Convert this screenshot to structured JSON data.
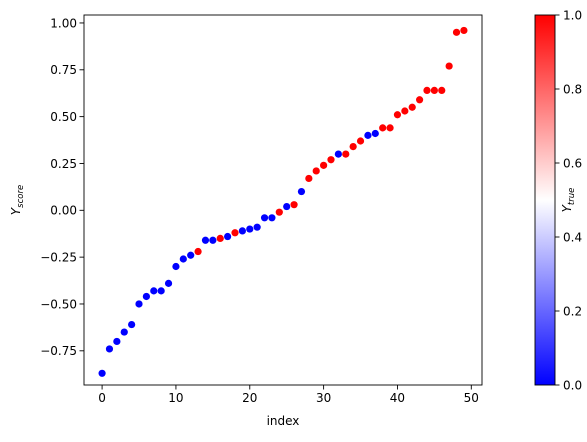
{
  "chart_data": {
    "type": "scatter",
    "title": "",
    "xlabel": "index",
    "ylabel": {
      "base": "Y",
      "sub": "score"
    },
    "xlim": [
      -2.45,
      51.45
    ],
    "ylim": [
      -0.9325,
      1.0425
    ],
    "xticks": [
      0,
      10,
      20,
      30,
      40,
      50
    ],
    "xtick_labels": [
      "0",
      "10",
      "20",
      "30",
      "40",
      "50"
    ],
    "yticks": [
      -0.75,
      -0.5,
      -0.25,
      0.0,
      0.25,
      0.5,
      0.75,
      1.0
    ],
    "ytick_labels": [
      "−0.75",
      "−0.50",
      "−0.25",
      "0.00",
      "0.25",
      "0.50",
      "0.75",
      "1.00"
    ],
    "grid": false,
    "points": [
      {
        "x": 0,
        "y": -0.87,
        "c": 0
      },
      {
        "x": 1,
        "y": -0.74,
        "c": 0
      },
      {
        "x": 2,
        "y": -0.7,
        "c": 0
      },
      {
        "x": 3,
        "y": -0.65,
        "c": 0
      },
      {
        "x": 4,
        "y": -0.61,
        "c": 0
      },
      {
        "x": 5,
        "y": -0.5,
        "c": 0
      },
      {
        "x": 6,
        "y": -0.46,
        "c": 0
      },
      {
        "x": 7,
        "y": -0.43,
        "c": 0
      },
      {
        "x": 8,
        "y": -0.43,
        "c": 0
      },
      {
        "x": 9,
        "y": -0.39,
        "c": 0
      },
      {
        "x": 10,
        "y": -0.3,
        "c": 0
      },
      {
        "x": 11,
        "y": -0.26,
        "c": 0
      },
      {
        "x": 12,
        "y": -0.24,
        "c": 0
      },
      {
        "x": 13,
        "y": -0.22,
        "c": 1
      },
      {
        "x": 14,
        "y": -0.16,
        "c": 0
      },
      {
        "x": 15,
        "y": -0.16,
        "c": 0
      },
      {
        "x": 16,
        "y": -0.15,
        "c": 1
      },
      {
        "x": 17,
        "y": -0.14,
        "c": 0
      },
      {
        "x": 18,
        "y": -0.12,
        "c": 1
      },
      {
        "x": 19,
        "y": -0.11,
        "c": 0
      },
      {
        "x": 20,
        "y": -0.1,
        "c": 0
      },
      {
        "x": 21,
        "y": -0.09,
        "c": 0
      },
      {
        "x": 22,
        "y": -0.04,
        "c": 0
      },
      {
        "x": 23,
        "y": -0.04,
        "c": 0
      },
      {
        "x": 24,
        "y": -0.01,
        "c": 1
      },
      {
        "x": 25,
        "y": 0.02,
        "c": 0
      },
      {
        "x": 26,
        "y": 0.03,
        "c": 1
      },
      {
        "x": 27,
        "y": 0.1,
        "c": 0
      },
      {
        "x": 28,
        "y": 0.17,
        "c": 1
      },
      {
        "x": 29,
        "y": 0.21,
        "c": 1
      },
      {
        "x": 30,
        "y": 0.24,
        "c": 1
      },
      {
        "x": 31,
        "y": 0.27,
        "c": 1
      },
      {
        "x": 32,
        "y": 0.3,
        "c": 0
      },
      {
        "x": 33,
        "y": 0.3,
        "c": 1
      },
      {
        "x": 34,
        "y": 0.34,
        "c": 1
      },
      {
        "x": 35,
        "y": 0.37,
        "c": 1
      },
      {
        "x": 36,
        "y": 0.4,
        "c": 0
      },
      {
        "x": 37,
        "y": 0.41,
        "c": 0
      },
      {
        "x": 38,
        "y": 0.44,
        "c": 1
      },
      {
        "x": 39,
        "y": 0.44,
        "c": 1
      },
      {
        "x": 40,
        "y": 0.51,
        "c": 1
      },
      {
        "x": 41,
        "y": 0.53,
        "c": 1
      },
      {
        "x": 42,
        "y": 0.55,
        "c": 1
      },
      {
        "x": 43,
        "y": 0.59,
        "c": 1
      },
      {
        "x": 44,
        "y": 0.64,
        "c": 1
      },
      {
        "x": 45,
        "y": 0.64,
        "c": 1
      },
      {
        "x": 46,
        "y": 0.64,
        "c": 1
      },
      {
        "x": 47,
        "y": 0.77,
        "c": 1
      },
      {
        "x": 48,
        "y": 0.95,
        "c": 1
      },
      {
        "x": 49,
        "y": 0.96,
        "c": 1
      }
    ],
    "colorbar": {
      "label": {
        "base": "Y",
        "sub": "true"
      },
      "range": [
        0.0,
        1.0
      ],
      "ticks": [
        0.0,
        0.2,
        0.4,
        0.6,
        0.8,
        1.0
      ],
      "tick_labels": [
        "0.0",
        "0.2",
        "0.4",
        "0.6",
        "0.8",
        "1.0"
      ],
      "colormap": "bwr",
      "colors": {
        "low": "#0000ff",
        "mid": "#ffffff",
        "high": "#ff0000"
      }
    }
  }
}
